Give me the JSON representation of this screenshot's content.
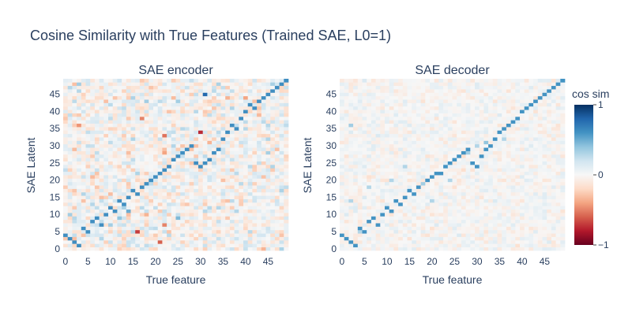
{
  "chart_data": {
    "title": "Cosine Similarity with True Features (Trained SAE, L0=1)",
    "colorbar": {
      "title": "cos sim",
      "range": [
        -1,
        1
      ],
      "tick_values": [
        1,
        0,
        -1
      ],
      "tick_labels": [
        "1",
        "0",
        "−1"
      ],
      "colorscale": [
        "#67001f",
        "#b2182b",
        "#d6604d",
        "#f4a582",
        "#fddbc7",
        "#f7f7f7",
        "#d1e5f0",
        "#92c5de",
        "#4393c3",
        "#2166ac",
        "#053061"
      ]
    },
    "panels": [
      {
        "type": "heatmap",
        "title": "SAE encoder",
        "xlabel": "True feature",
        "ylabel": "SAE Latent",
        "x_range": [
          0,
          49
        ],
        "y_range": [
          0,
          49
        ],
        "x_ticks": [
          0,
          5,
          10,
          15,
          20,
          25,
          30,
          35,
          40,
          45
        ],
        "y_ticks": [
          0,
          5,
          10,
          15,
          20,
          25,
          30,
          35,
          40,
          45
        ],
        "noise_amplitude": 0.25,
        "seed": 17,
        "matched_pairs": [
          [
            0,
            4
          ],
          [
            1,
            3
          ],
          [
            2,
            2
          ],
          [
            3,
            1
          ],
          [
            4,
            6
          ],
          [
            5,
            5
          ],
          [
            6,
            8
          ],
          [
            7,
            9
          ],
          [
            8,
            7
          ],
          [
            9,
            10
          ],
          [
            10,
            12
          ],
          [
            11,
            11
          ],
          [
            12,
            14
          ],
          [
            13,
            13
          ],
          [
            14,
            15
          ],
          [
            15,
            17
          ],
          [
            16,
            16
          ],
          [
            17,
            18
          ],
          [
            18,
            19
          ],
          [
            19,
            20
          ],
          [
            20,
            21
          ],
          [
            21,
            22
          ],
          [
            22,
            23
          ],
          [
            23,
            24
          ],
          [
            24,
            26
          ],
          [
            25,
            27
          ],
          [
            26,
            28
          ],
          [
            27,
            29
          ],
          [
            28,
            30
          ],
          [
            29,
            25
          ],
          [
            30,
            24
          ],
          [
            31,
            25
          ],
          [
            32,
            26
          ],
          [
            33,
            28
          ],
          [
            34,
            29
          ],
          [
            35,
            32
          ],
          [
            36,
            34
          ],
          [
            37,
            36
          ],
          [
            38,
            35
          ],
          [
            39,
            38
          ],
          [
            40,
            40
          ],
          [
            41,
            42
          ],
          [
            42,
            41
          ],
          [
            43,
            43
          ],
          [
            44,
            44
          ],
          [
            45,
            45
          ],
          [
            46,
            46
          ],
          [
            47,
            47
          ],
          [
            48,
            48
          ],
          [
            49,
            49
          ]
        ],
        "matched_value": 0.62,
        "extra_cells": [
          [
            31,
            45,
            0.78
          ],
          [
            30,
            34,
            -0.75
          ],
          [
            22,
            33,
            -0.55
          ],
          [
            17,
            38,
            -0.5
          ],
          [
            3,
            36,
            -0.45
          ],
          [
            21,
            2,
            -0.6
          ],
          [
            16,
            5,
            -0.7
          ],
          [
            22,
            7,
            -0.5
          ],
          [
            14,
            11,
            0.5
          ],
          [
            12,
            9,
            0.4
          ],
          [
            36,
            44,
            -0.35
          ],
          [
            40,
            44,
            -0.4
          ],
          [
            42,
            43,
            -0.3
          ],
          [
            29,
            30,
            -0.3
          ],
          [
            18,
            10,
            -0.35
          ],
          [
            25,
            9,
            0.45
          ],
          [
            10,
            7,
            0.35
          ],
          [
            8,
            3,
            0.3
          ],
          [
            1,
            10,
            0.35
          ],
          [
            4,
            16,
            0.3
          ],
          [
            22,
            28,
            -0.4
          ],
          [
            24,
            30,
            0.3
          ],
          [
            35,
            20,
            -0.3
          ]
        ]
      },
      {
        "type": "heatmap",
        "title": "SAE decoder",
        "xlabel": "True feature",
        "ylabel": "SAE Latent",
        "x_range": [
          0,
          49
        ],
        "y_range": [
          0,
          49
        ],
        "x_ticks": [
          0,
          5,
          10,
          15,
          20,
          25,
          30,
          35,
          40,
          45
        ],
        "y_ticks": [
          0,
          5,
          10,
          15,
          20,
          25,
          30,
          35,
          40,
          45
        ],
        "noise_amplitude": 0.12,
        "seed": 29,
        "matched_pairs": [
          [
            0,
            4
          ],
          [
            1,
            3
          ],
          [
            2,
            2
          ],
          [
            3,
            1
          ],
          [
            4,
            6
          ],
          [
            5,
            5
          ],
          [
            6,
            8
          ],
          [
            7,
            9
          ],
          [
            8,
            7
          ],
          [
            9,
            10
          ],
          [
            10,
            12
          ],
          [
            11,
            11
          ],
          [
            12,
            14
          ],
          [
            13,
            13
          ],
          [
            14,
            15
          ],
          [
            15,
            17
          ],
          [
            16,
            16
          ],
          [
            17,
            18
          ],
          [
            18,
            19
          ],
          [
            19,
            20
          ],
          [
            20,
            21
          ],
          [
            21,
            22
          ],
          [
            22,
            22
          ],
          [
            23,
            24
          ],
          [
            24,
            25
          ],
          [
            25,
            26
          ],
          [
            26,
            27
          ],
          [
            27,
            28
          ],
          [
            28,
            29
          ],
          [
            29,
            25
          ],
          [
            30,
            24
          ],
          [
            31,
            27
          ],
          [
            32,
            29
          ],
          [
            33,
            30
          ],
          [
            34,
            32
          ],
          [
            35,
            34
          ],
          [
            36,
            35
          ],
          [
            37,
            36
          ],
          [
            38,
            37
          ],
          [
            39,
            38
          ],
          [
            40,
            40
          ],
          [
            41,
            41
          ],
          [
            42,
            42
          ],
          [
            43,
            43
          ],
          [
            44,
            44
          ],
          [
            45,
            45
          ],
          [
            46,
            46
          ],
          [
            47,
            47
          ],
          [
            48,
            48
          ],
          [
            49,
            49
          ]
        ],
        "matched_value": 0.6,
        "extra_cells": [
          [
            32,
            31,
            0.4
          ],
          [
            28,
            28,
            0.35
          ],
          [
            36,
            32,
            0.3
          ],
          [
            30,
            30,
            0.3
          ],
          [
            2,
            36,
            0.35
          ],
          [
            4,
            5,
            0.3
          ],
          [
            14,
            24,
            0.3
          ],
          [
            2,
            14,
            0.3
          ],
          [
            6,
            18,
            0.3
          ],
          [
            20,
            14,
            0.3
          ],
          [
            11,
            20,
            0.3
          ],
          [
            24,
            20,
            0.3
          ],
          [
            18,
            19,
            0.35
          ]
        ]
      }
    ]
  }
}
